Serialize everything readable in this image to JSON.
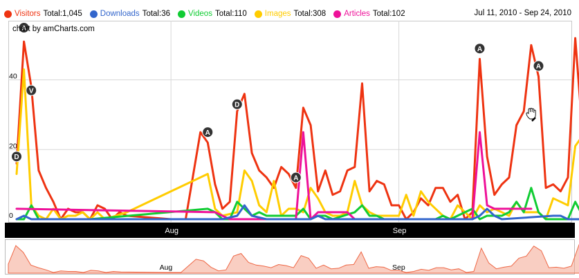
{
  "legend": {
    "total_label": "Total:",
    "items": [
      {
        "name": "Visitors",
        "total": "1,045",
        "color": "#ee3311"
      },
      {
        "name": "Downloads",
        "total": "36",
        "color": "#3366cc"
      },
      {
        "name": "Videos",
        "total": "110",
        "color": "#11cc33"
      },
      {
        "name": "Images",
        "total": "308",
        "color": "#ffcc00"
      },
      {
        "name": "Articles",
        "total": "102",
        "color": "#ee1199"
      }
    ]
  },
  "date_range": "Jul 11, 2010 - Sep 24, 2010",
  "credit": "chart by amCharts.com",
  "chart_data": {
    "type": "line",
    "x_start": "2010-07-11",
    "x_end": "2010-09-24",
    "ylim": [
      0,
      55
    ],
    "y_ticks": [
      0,
      20,
      40
    ],
    "x_ticks": [
      {
        "label": "Aug",
        "date": "2010-08-01"
      },
      {
        "label": "Sep",
        "date": "2010-09-01"
      }
    ],
    "grid": true,
    "series": [
      {
        "name": "Visitors",
        "color": "#ee3311",
        "width": 3,
        "values": [
          [
            0,
            16
          ],
          [
            1,
            51
          ],
          [
            2,
            38
          ],
          [
            3,
            14
          ],
          [
            4,
            9
          ],
          [
            5,
            5
          ],
          [
            6,
            0
          ],
          [
            7,
            3
          ],
          [
            8,
            2
          ],
          [
            9,
            2
          ],
          [
            10,
            0
          ],
          [
            11,
            4
          ],
          [
            12,
            3
          ],
          [
            13,
            0
          ],
          [
            14,
            2
          ],
          [
            15,
            1
          ],
          [
            21,
            0
          ],
          [
            23,
            0
          ],
          [
            25,
            25
          ],
          [
            26,
            22
          ],
          [
            27,
            10
          ],
          [
            28,
            3
          ],
          [
            29,
            5
          ],
          [
            30,
            31
          ],
          [
            31,
            36
          ],
          [
            32,
            19
          ],
          [
            33,
            14
          ],
          [
            34,
            12
          ],
          [
            35,
            9
          ],
          [
            36,
            15
          ],
          [
            37,
            13
          ],
          [
            38,
            9
          ],
          [
            39,
            32
          ],
          [
            40,
            27
          ],
          [
            41,
            8
          ],
          [
            42,
            14
          ],
          [
            43,
            7
          ],
          [
            44,
            8
          ],
          [
            45,
            14
          ],
          [
            46,
            15
          ],
          [
            47,
            39
          ],
          [
            48,
            8
          ],
          [
            49,
            11
          ],
          [
            50,
            10
          ],
          [
            51,
            4
          ],
          [
            52,
            4
          ],
          [
            53,
            0
          ],
          [
            54,
            2
          ],
          [
            55,
            6
          ],
          [
            56,
            4
          ],
          [
            57,
            9
          ],
          [
            58,
            9
          ],
          [
            59,
            5
          ],
          [
            60,
            7
          ],
          [
            61,
            0
          ],
          [
            62,
            2
          ],
          [
            63,
            46
          ],
          [
            64,
            18
          ],
          [
            65,
            7
          ],
          [
            66,
            10
          ],
          [
            67,
            12
          ],
          [
            68,
            27
          ],
          [
            69,
            31
          ],
          [
            70,
            50
          ],
          [
            71,
            41
          ],
          [
            72,
            9
          ],
          [
            73,
            10
          ],
          [
            74,
            8
          ],
          [
            75,
            12
          ],
          [
            76,
            52
          ],
          [
            77,
            24
          ]
        ]
      },
      {
        "name": "Images",
        "color": "#ffcc00",
        "width": 3,
        "values": [
          [
            0,
            13
          ],
          [
            1,
            43
          ],
          [
            2,
            4
          ],
          [
            3,
            1
          ],
          [
            4,
            0
          ],
          [
            5,
            3
          ],
          [
            6,
            0
          ],
          [
            7,
            1
          ],
          [
            8,
            1
          ],
          [
            9,
            2
          ],
          [
            10,
            0
          ],
          [
            11,
            2
          ],
          [
            12,
            0
          ],
          [
            15,
            2
          ],
          [
            26,
            13
          ],
          [
            27,
            3
          ],
          [
            28,
            1
          ],
          [
            30,
            2
          ],
          [
            31,
            14
          ],
          [
            32,
            11
          ],
          [
            33,
            4
          ],
          [
            34,
            2
          ],
          [
            35,
            11
          ],
          [
            36,
            1
          ],
          [
            37,
            3
          ],
          [
            38,
            3
          ],
          [
            39,
            2
          ],
          [
            40,
            9
          ],
          [
            41,
            6
          ],
          [
            42,
            2
          ],
          [
            43,
            1
          ],
          [
            44,
            1
          ],
          [
            45,
            2
          ],
          [
            46,
            11
          ],
          [
            47,
            4
          ],
          [
            48,
            2
          ],
          [
            49,
            1
          ],
          [
            50,
            1
          ],
          [
            52,
            1
          ],
          [
            53,
            7
          ],
          [
            54,
            1
          ],
          [
            55,
            8
          ],
          [
            56,
            5
          ],
          [
            57,
            3
          ],
          [
            58,
            1
          ],
          [
            59,
            0
          ],
          [
            60,
            4
          ],
          [
            61,
            2
          ],
          [
            62,
            0
          ],
          [
            63,
            4
          ],
          [
            64,
            2
          ],
          [
            65,
            3
          ],
          [
            66,
            2
          ],
          [
            67,
            1
          ],
          [
            68,
            5
          ],
          [
            69,
            2
          ],
          [
            70,
            2
          ],
          [
            71,
            2
          ],
          [
            72,
            0
          ],
          [
            73,
            6
          ],
          [
            74,
            5
          ],
          [
            75,
            4
          ],
          [
            76,
            21
          ],
          [
            77,
            24
          ]
        ]
      },
      {
        "name": "Videos",
        "color": "#11cc33",
        "width": 3,
        "values": [
          [
            0,
            0
          ],
          [
            1,
            0
          ],
          [
            2,
            4
          ],
          [
            3,
            0
          ],
          [
            10,
            0
          ],
          [
            26,
            3
          ],
          [
            27,
            2
          ],
          [
            28,
            0
          ],
          [
            29,
            0
          ],
          [
            30,
            5
          ],
          [
            31,
            3
          ],
          [
            32,
            1
          ],
          [
            33,
            2
          ],
          [
            34,
            1
          ],
          [
            36,
            1
          ],
          [
            38,
            1
          ],
          [
            39,
            3
          ],
          [
            40,
            0
          ],
          [
            41,
            1
          ],
          [
            42,
            1
          ],
          [
            43,
            0
          ],
          [
            46,
            2
          ],
          [
            47,
            4
          ],
          [
            48,
            1
          ],
          [
            49,
            1
          ],
          [
            50,
            0
          ],
          [
            57,
            0
          ],
          [
            58,
            1
          ],
          [
            59,
            0
          ],
          [
            61,
            2
          ],
          [
            62,
            3
          ],
          [
            63,
            0
          ],
          [
            64,
            1
          ],
          [
            65,
            1
          ],
          [
            66,
            1
          ],
          [
            67,
            2
          ],
          [
            68,
            5
          ],
          [
            69,
            2
          ],
          [
            70,
            9
          ],
          [
            71,
            2
          ],
          [
            72,
            0
          ],
          [
            75,
            0
          ],
          [
            76,
            5
          ],
          [
            77,
            1
          ]
        ]
      },
      {
        "name": "Articles",
        "color": "#ee1199",
        "width": 3,
        "values": [
          [
            0,
            3
          ],
          [
            27,
            2
          ],
          [
            28,
            1
          ],
          [
            29,
            0
          ],
          [
            36,
            0
          ],
          [
            37,
            0
          ],
          [
            38,
            0
          ],
          [
            39,
            25
          ],
          [
            40,
            0
          ],
          [
            41,
            2
          ],
          [
            45,
            2
          ],
          [
            46,
            0
          ],
          [
            61,
            0
          ],
          [
            62,
            0
          ],
          [
            63,
            25
          ],
          [
            64,
            4
          ],
          [
            65,
            3
          ],
          [
            70,
            3
          ]
        ]
      },
      {
        "name": "Downloads",
        "color": "#3366cc",
        "width": 3,
        "values": [
          [
            0,
            0
          ],
          [
            1,
            1
          ],
          [
            2,
            0
          ],
          [
            28,
            0
          ],
          [
            30,
            1
          ],
          [
            31,
            4
          ],
          [
            32,
            1
          ],
          [
            34,
            0
          ],
          [
            40,
            0
          ],
          [
            41,
            1
          ],
          [
            42,
            0
          ],
          [
            62,
            0
          ],
          [
            63,
            1
          ],
          [
            64,
            3
          ],
          [
            65,
            1
          ],
          [
            66,
            0
          ],
          [
            73,
            1
          ],
          [
            74,
            1
          ],
          [
            75,
            0
          ],
          [
            77,
            0
          ]
        ]
      }
    ],
    "annotations": [
      {
        "letter": "A",
        "day": 1,
        "y": 55
      },
      {
        "letter": "V",
        "day": 2,
        "y": 37
      },
      {
        "letter": "D",
        "day": 0,
        "y": 18
      },
      {
        "letter": "A",
        "day": 26,
        "y": 25
      },
      {
        "letter": "D",
        "day": 30,
        "y": 33
      },
      {
        "letter": "A",
        "day": 38,
        "y": 12
      },
      {
        "letter": "A",
        "day": 63,
        "y": 49
      },
      {
        "letter": "A",
        "day": 71,
        "y": 44
      }
    ],
    "scrollbar": {
      "color": "#f4a58f",
      "x_ticks": [
        {
          "label": "Aug",
          "date": "2010-08-01"
        },
        {
          "label": "Sep",
          "date": "2010-09-01"
        }
      ]
    }
  }
}
